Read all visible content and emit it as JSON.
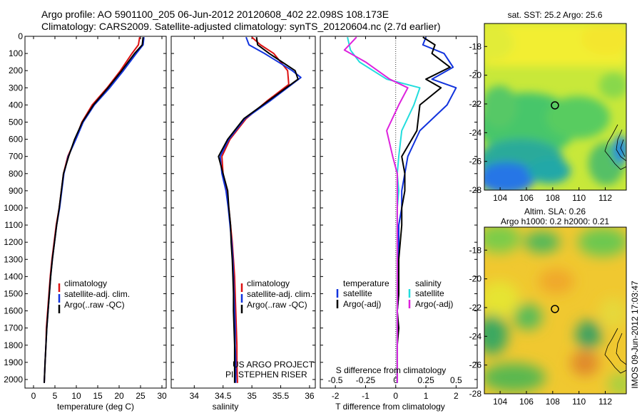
{
  "header": {
    "line1": "Argo profile: AO 5901100_205 06-Jun-2012 20120608_402 22.098S 108.173E",
    "line2": "Climatology: CARS2009. Satellite-adjusted climatology: synTS_20120604.nc (2.7d earlier)"
  },
  "side_label": "IMOS 09-Jun-2012 17:03:47",
  "map_sst": {
    "title": "sat. SST: 25.2  Argo: 25.6"
  },
  "map_sla": {
    "title1": "Altim. SLA: 0.26",
    "title2": "Argo h1000: 0.2  h2000: 0.21"
  },
  "project": {
    "line1": "US ARGO PROJECT",
    "line2": "PI: STEPHEN RISER"
  },
  "colors": {
    "climatology": "#dd1111",
    "satellite": "#1133dd",
    "argo": "#000000",
    "sal_satellite": "#22dddd",
    "sal_argo": "#dd22dd"
  },
  "chart_data": [
    {
      "id": "temp",
      "type": "line",
      "xlabel": "temperature (deg C)",
      "ylabel": "",
      "xlim": [
        -2,
        31
      ],
      "ylim": [
        2050,
        0
      ],
      "xticks": [
        0,
        5,
        10,
        15,
        20,
        25,
        30
      ],
      "yticks": [
        0,
        100,
        200,
        300,
        400,
        500,
        600,
        700,
        800,
        900,
        1000,
        1100,
        1200,
        1300,
        1400,
        1500,
        1600,
        1700,
        1800,
        1900,
        2000
      ],
      "legend": [
        "climatology",
        "satellite-adj. clim.",
        "Argo(..raw -QC)"
      ],
      "legend_placement": "lower-center",
      "series": [
        {
          "name": "climatology",
          "color_key": "climatology",
          "x": [
            24.8,
            24.5,
            23.0,
            20.3,
            17.2,
            13.7,
            11.3,
            9.8,
            8.0,
            7.0,
            6.5,
            6.0,
            5.3,
            4.8,
            4.3,
            3.9,
            3.6,
            3.3,
            3.0,
            2.9,
            2.7,
            2.5
          ],
          "y": [
            5,
            50,
            100,
            200,
            300,
            400,
            500,
            600,
            700,
            800,
            900,
            1000,
            1100,
            1200,
            1300,
            1400,
            1500,
            1600,
            1700,
            1800,
            1900,
            2020
          ]
        },
        {
          "name": "satellite-adj. clim.",
          "color_key": "satellite",
          "x": [
            25.8,
            25.6,
            24.0,
            21.0,
            17.8,
            14.2,
            11.6,
            9.9,
            8.1,
            7.1,
            6.6,
            6.1,
            5.4,
            4.9,
            4.4,
            4.0,
            3.7,
            3.4,
            3.1,
            2.9,
            2.7,
            2.5
          ],
          "y": [
            5,
            50,
            100,
            200,
            300,
            400,
            500,
            600,
            700,
            800,
            900,
            1000,
            1100,
            1200,
            1300,
            1400,
            1500,
            1600,
            1700,
            1800,
            1900,
            2020
          ]
        },
        {
          "name": "Argo(..raw -QC)",
          "color_key": "argo",
          "x": [
            25.6,
            25.4,
            23.6,
            20.6,
            17.4,
            14.0,
            11.4,
            9.6,
            8.2,
            7.0,
            6.5,
            6.0,
            5.4,
            4.9,
            4.4,
            4.0,
            3.7,
            3.4,
            3.1,
            2.9,
            2.7,
            2.5
          ],
          "y": [
            5,
            50,
            100,
            200,
            300,
            400,
            500,
            600,
            700,
            800,
            900,
            1000,
            1100,
            1200,
            1300,
            1400,
            1500,
            1600,
            1700,
            1800,
            1900,
            2020
          ]
        }
      ]
    },
    {
      "id": "sal",
      "type": "line",
      "xlabel": "salinity",
      "ylabel": "",
      "xlim": [
        33.6,
        36.1
      ],
      "ylim": [
        2050,
        0
      ],
      "xticks": [
        34,
        34.5,
        35,
        35.5,
        36
      ],
      "legend": [
        "climatology",
        "satellite-adj. clim.",
        "Argo(..raw -QC)"
      ],
      "legend_placement": "lower-center",
      "series": [
        {
          "name": "climatology",
          "color_key": "climatology",
          "x": [
            35.0,
            35.15,
            35.38,
            35.62,
            35.64,
            35.25,
            34.9,
            34.62,
            34.48,
            34.5,
            34.56,
            34.6,
            34.63,
            34.66,
            34.68,
            34.7,
            34.71,
            34.72,
            34.73,
            34.74,
            34.74,
            34.75
          ],
          "y": [
            5,
            50,
            100,
            200,
            280,
            380,
            480,
            600,
            700,
            800,
            900,
            1000,
            1100,
            1200,
            1300,
            1400,
            1500,
            1600,
            1700,
            1800,
            1900,
            2020
          ]
        },
        {
          "name": "satellite-adj. clim.",
          "color_key": "satellite",
          "x": [
            34.9,
            34.95,
            35.22,
            35.7,
            35.85,
            35.3,
            34.88,
            34.6,
            34.45,
            34.48,
            34.55,
            34.59,
            34.62,
            34.65,
            34.67,
            34.68,
            34.69,
            34.7,
            34.71,
            34.71,
            34.72,
            34.72
          ],
          "y": [
            5,
            50,
            100,
            200,
            240,
            380,
            480,
            600,
            700,
            800,
            900,
            1000,
            1100,
            1200,
            1300,
            1400,
            1500,
            1600,
            1700,
            1800,
            1900,
            2020
          ]
        },
        {
          "name": "Argo(..raw -QC)",
          "color_key": "argo",
          "x": [
            35.08,
            35.1,
            35.3,
            35.75,
            35.8,
            35.27,
            34.86,
            34.58,
            34.42,
            34.5,
            34.58,
            34.6,
            34.63,
            34.64,
            34.66,
            34.67,
            34.68,
            34.68,
            34.69,
            34.7,
            34.7,
            34.7
          ],
          "y": [
            5,
            50,
            100,
            200,
            250,
            380,
            480,
            600,
            700,
            800,
            900,
            1000,
            1100,
            1200,
            1300,
            1400,
            1500,
            1600,
            1700,
            1800,
            1900,
            2020
          ]
        }
      ]
    },
    {
      "id": "diff",
      "type": "line",
      "xlabel": "T difference from climatology",
      "xlabel_top": "S difference from climatology",
      "xlim": [
        -2.5,
        2.7
      ],
      "ylim": [
        2050,
        0
      ],
      "xticks": [
        -2,
        -1,
        0,
        1,
        2
      ],
      "sticks": [
        "-0.5",
        "-0.25",
        "0",
        "0.25",
        "0.5"
      ],
      "sticks_pos": [
        -2,
        -1,
        0,
        1,
        2
      ],
      "legend_temperature_title": "temperature",
      "legend_salinity_title": "salinity",
      "legend_temperature": [
        "satellite",
        "Argo(-adj)"
      ],
      "legend_salinity": [
        "satellite",
        "Argo(-adj)"
      ],
      "legend_placement": "lower-center",
      "series": [
        {
          "name": "temperature satellite",
          "color_key": "satellite",
          "x": [
            1.0,
            0.9,
            1.6,
            1.9,
            1.2,
            2.0,
            1.7,
            0.8,
            0.4,
            0.3,
            0.2,
            0.2,
            0.1,
            0.1,
            0.1,
            0.1,
            0.1,
            0.05,
            0.05,
            0.05,
            0.05,
            0.05
          ],
          "y": [
            5,
            50,
            100,
            180,
            250,
            300,
            400,
            550,
            700,
            800,
            900,
            1000,
            1100,
            1200,
            1300,
            1400,
            1500,
            1600,
            1700,
            1800,
            1900,
            2020
          ]
        },
        {
          "name": "temperature Argo(-adj)",
          "color_key": "argo",
          "x": [
            0.9,
            1.3,
            1.2,
            1.8,
            1.0,
            1.5,
            0.8,
            0.7,
            0.2,
            0.3,
            0.3,
            0.2,
            0.2,
            0.15,
            0.1,
            0.1,
            0.1,
            0.05,
            0.1,
            0.05,
            0.05,
            0.05
          ],
          "y": [
            5,
            50,
            100,
            180,
            250,
            300,
            400,
            550,
            700,
            800,
            900,
            1000,
            1100,
            1200,
            1300,
            1400,
            1500,
            1600,
            1700,
            1800,
            1900,
            2020
          ]
        },
        {
          "name": "salinity satellite",
          "color_key": "sal_satellite",
          "x": [
            -1.6,
            -1.5,
            -1.2,
            -0.3,
            0.8,
            0.6,
            0.2,
            0.1,
            0.05,
            0.1,
            0.05,
            0.05,
            0.05,
            0.05,
            0.05,
            0.05,
            0.05,
            0.05,
            0.05,
            0.05,
            0.05,
            0.05
          ],
          "y": [
            5,
            80,
            150,
            250,
            300,
            400,
            550,
            700,
            800,
            900,
            1000,
            1100,
            1200,
            1300,
            1400,
            1500,
            1600,
            1700,
            1800,
            1900,
            1950,
            2020
          ]
        },
        {
          "name": "salinity Argo(-adj)",
          "color_key": "sal_argo",
          "x": [
            -1.3,
            -1.7,
            -1.0,
            -0.2,
            0.4,
            0.1,
            -0.3,
            -0.1,
            0.05,
            0.05,
            0.05,
            0.05,
            0.05,
            0.05,
            0.05,
            0.05,
            0.05,
            0.05,
            0.05,
            0.05,
            0.05,
            0.05
          ],
          "y": [
            5,
            80,
            150,
            250,
            300,
            400,
            550,
            700,
            800,
            900,
            1000,
            1100,
            1200,
            1300,
            1400,
            1500,
            1600,
            1700,
            1800,
            1900,
            1950,
            2020
          ]
        }
      ]
    },
    {
      "id": "sst_map",
      "type": "heatmap",
      "xticks": [
        104,
        106,
        108,
        110,
        112
      ],
      "yticks": [
        -18,
        -20,
        -22,
        -24,
        -26,
        -28
      ],
      "xlim": [
        102.8,
        113.6
      ],
      "ylim": [
        -28,
        -16.4
      ],
      "marker": {
        "lon": 108.17,
        "lat": -22.1
      }
    },
    {
      "id": "sla_map",
      "type": "heatmap",
      "xticks": [
        104,
        106,
        108,
        110,
        112
      ],
      "yticks": [
        -18,
        -20,
        -22,
        -24,
        -26,
        -28
      ],
      "xlim": [
        102.8,
        113.6
      ],
      "ylim": [
        -28,
        -16.4
      ],
      "marker": {
        "lon": 108.17,
        "lat": -22.1
      }
    }
  ]
}
